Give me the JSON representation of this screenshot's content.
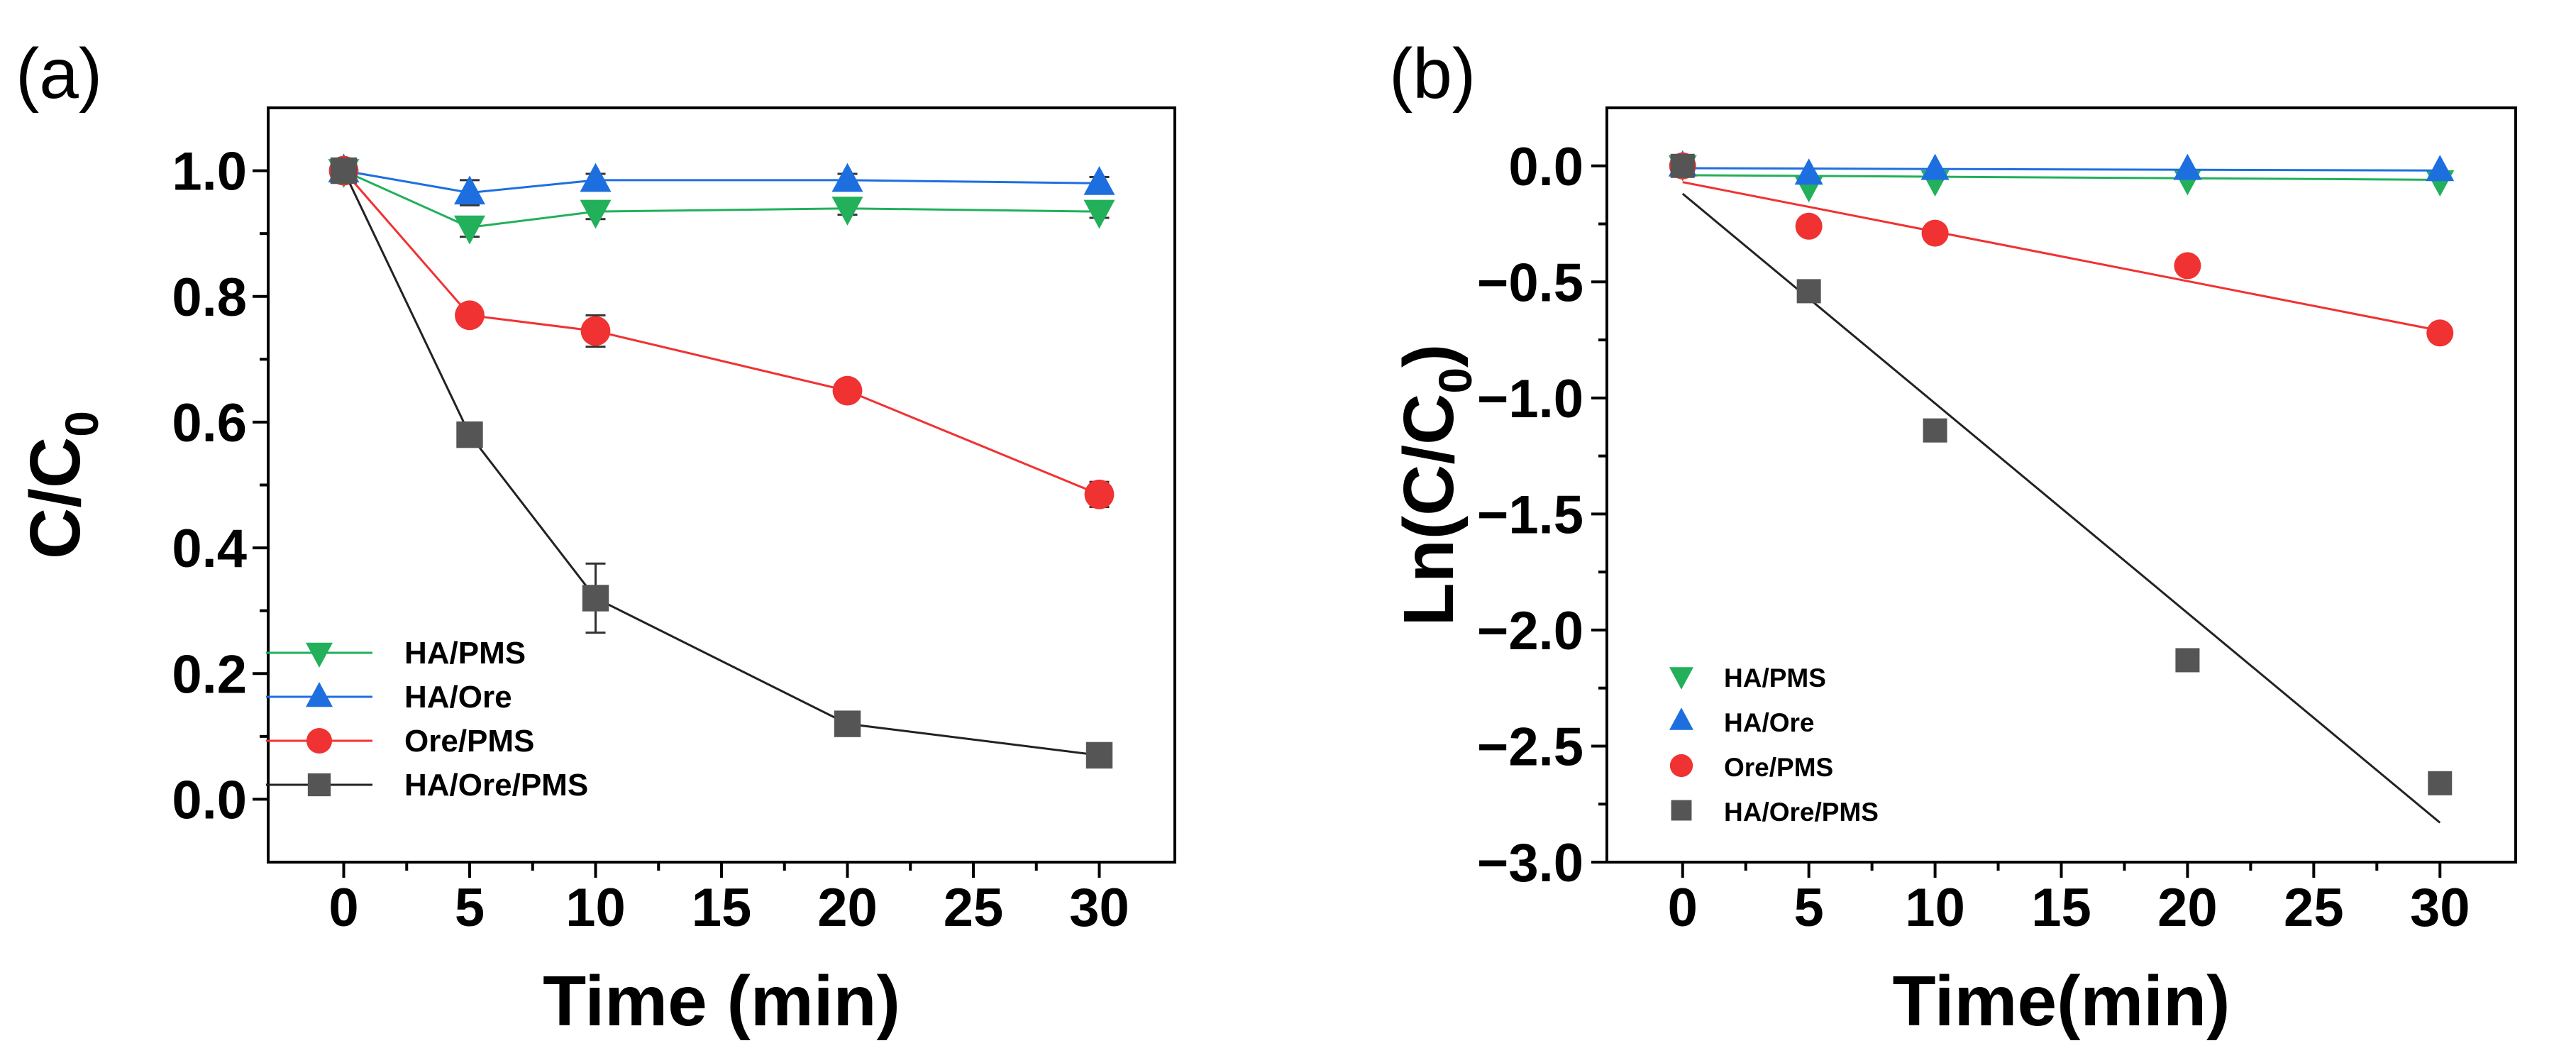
{
  "chart_data": [
    {
      "panel_label": "(a)",
      "type": "line",
      "xlabel": "Time (min)",
      "ylabel": "C/C",
      "ylabel_sub": "0",
      "xlim": [
        -3,
        33
      ],
      "ylim": [
        -0.1,
        1.1
      ],
      "x_ticks": [
        0,
        5,
        10,
        15,
        20,
        25,
        30
      ],
      "x_tick_labels": [
        "0",
        "5",
        "10",
        "15",
        "20",
        "25",
        "30"
      ],
      "y_ticks": [
        0.0,
        0.2,
        0.4,
        0.6,
        0.8,
        1.0
      ],
      "y_tick_labels": [
        "0.0",
        "0.2",
        "0.4",
        "0.6",
        "0.8",
        "1.0"
      ],
      "grid": false,
      "legend_position": "bottom-left",
      "series": [
        {
          "name": "HA/PMS",
          "color": "#22b05a",
          "marker": "triangle-down",
          "x": [
            0,
            5,
            10,
            20,
            30
          ],
          "y": [
            1.0,
            0.91,
            0.935,
            0.94,
            0.935
          ],
          "err": [
            0,
            0.015,
            0.012,
            0.01,
            0.01
          ],
          "draw_line": true
        },
        {
          "name": "HA/Ore",
          "color": "#1d6fe0",
          "marker": "triangle-up",
          "x": [
            0,
            5,
            10,
            20,
            30
          ],
          "y": [
            1.0,
            0.965,
            0.985,
            0.985,
            0.98
          ],
          "err": [
            0,
            0.02,
            0.01,
            0.01,
            0.01
          ],
          "draw_line": true
        },
        {
          "name": "Ore/PMS",
          "color": "#f03232",
          "marker": "circle",
          "x": [
            0,
            5,
            10,
            20,
            30
          ],
          "y": [
            1.0,
            0.77,
            0.745,
            0.65,
            0.485
          ],
          "err": [
            0,
            0.01,
            0.025,
            0.01,
            0.02
          ],
          "draw_line": true
        },
        {
          "name": "HA/Ore/PMS",
          "color": "#555555",
          "marker": "square",
          "line_color": "#222222",
          "x": [
            0,
            5,
            10,
            20,
            30
          ],
          "y": [
            1.0,
            0.58,
            0.32,
            0.12,
            0.07
          ],
          "err": [
            0,
            0.01,
            0.055,
            0.01,
            0.01
          ],
          "draw_line": true
        }
      ]
    },
    {
      "panel_label": "(b)",
      "type": "scatter",
      "xlabel": "Time(min)",
      "ylabel": "Ln(C/C",
      "ylabel_sub": "0",
      "ylabel_tail": ")",
      "xlim": [
        -3,
        33
      ],
      "ylim": [
        -3.0,
        0.25
      ],
      "x_ticks": [
        0,
        5,
        10,
        15,
        20,
        25,
        30
      ],
      "x_tick_labels": [
        "0",
        "5",
        "10",
        "15",
        "20",
        "25",
        "30"
      ],
      "y_ticks": [
        0.0,
        -0.5,
        -1.0,
        -1.5,
        -2.0,
        -2.5,
        -3.0
      ],
      "y_tick_labels": [
        "0.0",
        "−0.5",
        "−1.0",
        "−1.5",
        "−2.0",
        "−2.5",
        "−3.0"
      ],
      "grid": false,
      "legend_position": "bottom-left",
      "series": [
        {
          "name": "HA/PMS",
          "color": "#22b05a",
          "marker": "triangle-down",
          "x": [
            0,
            5,
            10,
            20,
            30
          ],
          "y": [
            0.0,
            -0.09,
            -0.065,
            -0.06,
            -0.065
          ],
          "fit": [
            -0.04,
            -0.06
          ]
        },
        {
          "name": "HA/Ore",
          "color": "#1d6fe0",
          "marker": "triangle-up",
          "x": [
            0,
            5,
            10,
            20,
            30
          ],
          "y": [
            0.0,
            -0.035,
            -0.015,
            -0.015,
            -0.02
          ],
          "fit": [
            -0.01,
            -0.02
          ]
        },
        {
          "name": "Ore/PMS",
          "color": "#f03232",
          "marker": "circle",
          "x": [
            0,
            5,
            10,
            20,
            30
          ],
          "y": [
            0.0,
            -0.26,
            -0.29,
            -0.43,
            -0.72
          ],
          "fit": [
            -0.07,
            -0.71
          ]
        },
        {
          "name": "HA/Ore/PMS",
          "color": "#555555",
          "marker": "square",
          "line_color": "#222222",
          "x": [
            0,
            5,
            10,
            20,
            30
          ],
          "y": [
            0.0,
            -0.54,
            -1.14,
            -2.13,
            -2.66
          ],
          "fit": [
            -0.12,
            -2.83
          ]
        }
      ]
    }
  ]
}
